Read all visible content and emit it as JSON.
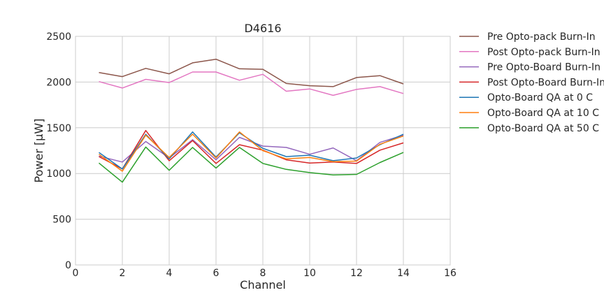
{
  "chart_data": {
    "type": "line",
    "title": "D4616",
    "xlabel": "Channel",
    "ylabel": "Power [μW]",
    "xlim": [
      0,
      16
    ],
    "ylim": [
      0,
      2500
    ],
    "xticks": [
      0,
      2,
      4,
      6,
      8,
      10,
      12,
      14,
      16
    ],
    "yticks": [
      0,
      500,
      1000,
      1500,
      2000,
      2500
    ],
    "grid": true,
    "legend_position": "outside-right",
    "x": [
      1,
      2,
      3,
      4,
      5,
      6,
      7,
      8,
      9,
      10,
      11,
      12,
      13,
      14
    ],
    "series": [
      {
        "name": "Pre Opto-pack Burn-In",
        "color": "#8c564b",
        "values": [
          2105,
          2060,
          2150,
          2090,
          2210,
          2250,
          2145,
          2140,
          1985,
          1960,
          1950,
          2050,
          2070,
          1980
        ]
      },
      {
        "name": "Post Opto-pack Burn-In",
        "color": "#e377c2",
        "values": [
          2005,
          1935,
          2030,
          1995,
          2110,
          2110,
          2020,
          2085,
          1900,
          1925,
          1855,
          1920,
          1950,
          1875
        ]
      },
      {
        "name": "Pre Opto-Board Burn-In",
        "color": "#9467bd",
        "values": [
          1190,
          1125,
          1350,
          1170,
          1370,
          1150,
          1395,
          1300,
          1285,
          1210,
          1280,
          1140,
          1340,
          1420
        ]
      },
      {
        "name": "Post Opto-Board Burn-In",
        "color": "#d62728",
        "values": [
          1185,
          1050,
          1470,
          1140,
          1360,
          1110,
          1315,
          1255,
          1150,
          1115,
          1125,
          1110,
          1255,
          1335
        ]
      },
      {
        "name": "Opto-Board QA at 0 C",
        "color": "#1f77b4",
        "values": [
          1230,
          1050,
          1430,
          1160,
          1455,
          1180,
          1445,
          1275,
          1185,
          1200,
          1140,
          1170,
          1315,
          1430
        ]
      },
      {
        "name": "Opto-Board QA at 10 C",
        "color": "#ff7f0e",
        "values": [
          1210,
          1025,
          1420,
          1175,
          1430,
          1170,
          1455,
          1250,
          1160,
          1175,
          1130,
          1135,
          1320,
          1410
        ]
      },
      {
        "name": "Opto-Board QA at 50 C",
        "color": "#2ca02c",
        "values": [
          1115,
          905,
          1290,
          1035,
          1285,
          1060,
          1285,
          1110,
          1045,
          1010,
          985,
          990,
          1120,
          1230
        ]
      }
    ]
  }
}
